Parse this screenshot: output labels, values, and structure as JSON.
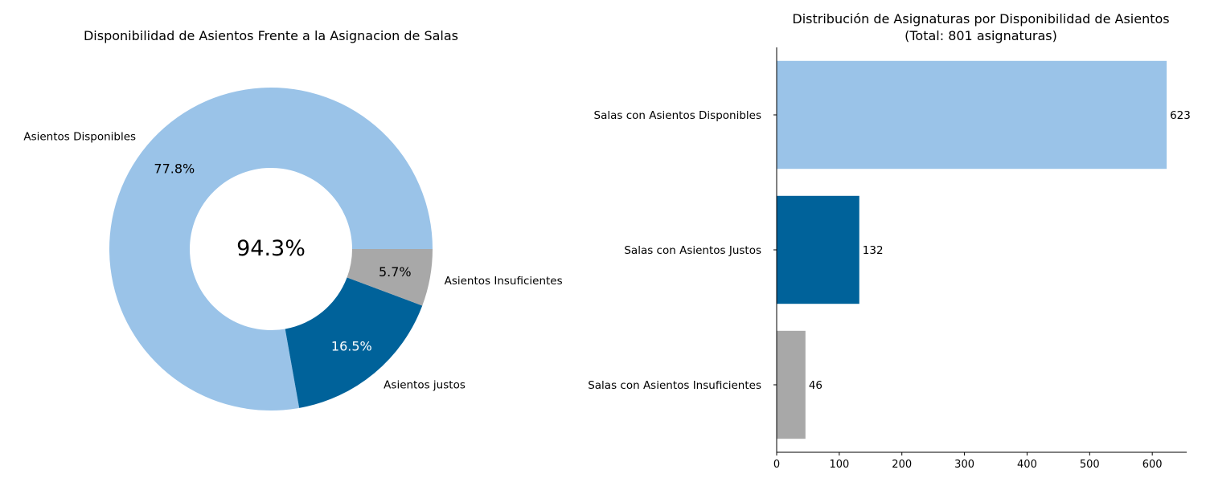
{
  "chart_data": [
    {
      "type": "pie",
      "title": "Disponibilidad de Asientos Frente a la Asignacion de Salas",
      "center_label": "94.3%",
      "slices": [
        {
          "label": "Asientos Disponibles",
          "value": 77.8,
          "pct_label": "77.8%",
          "color": "#9ac3e8",
          "pct_text_color": "#000000"
        },
        {
          "label": "Asientos justos",
          "value": 16.5,
          "pct_label": "16.5%",
          "color": "#00629a",
          "pct_text_color": "#ffffff"
        },
        {
          "label": "Asientos Insuficientes",
          "value": 5.7,
          "pct_label": "5.7%",
          "color": "#a8a8a8",
          "pct_text_color": "#000000"
        }
      ],
      "donut": true
    },
    {
      "type": "bar",
      "orientation": "horizontal",
      "title": "Distribución de Asignaturas por Disponibilidad de Asientos",
      "subtitle": "(Total: 801 asignaturas)",
      "categories": [
        "Salas con Asientos Disponibles",
        "Salas con Asientos Justos",
        "Salas con Asientos Insuficientes"
      ],
      "values": [
        623,
        132,
        46
      ],
      "colors": [
        "#9ac3e8",
        "#00629a",
        "#a8a8a8"
      ],
      "xlim": [
        0,
        655
      ],
      "xticks": [
        0,
        100,
        200,
        300,
        400,
        500,
        600
      ],
      "grid": false
    }
  ]
}
